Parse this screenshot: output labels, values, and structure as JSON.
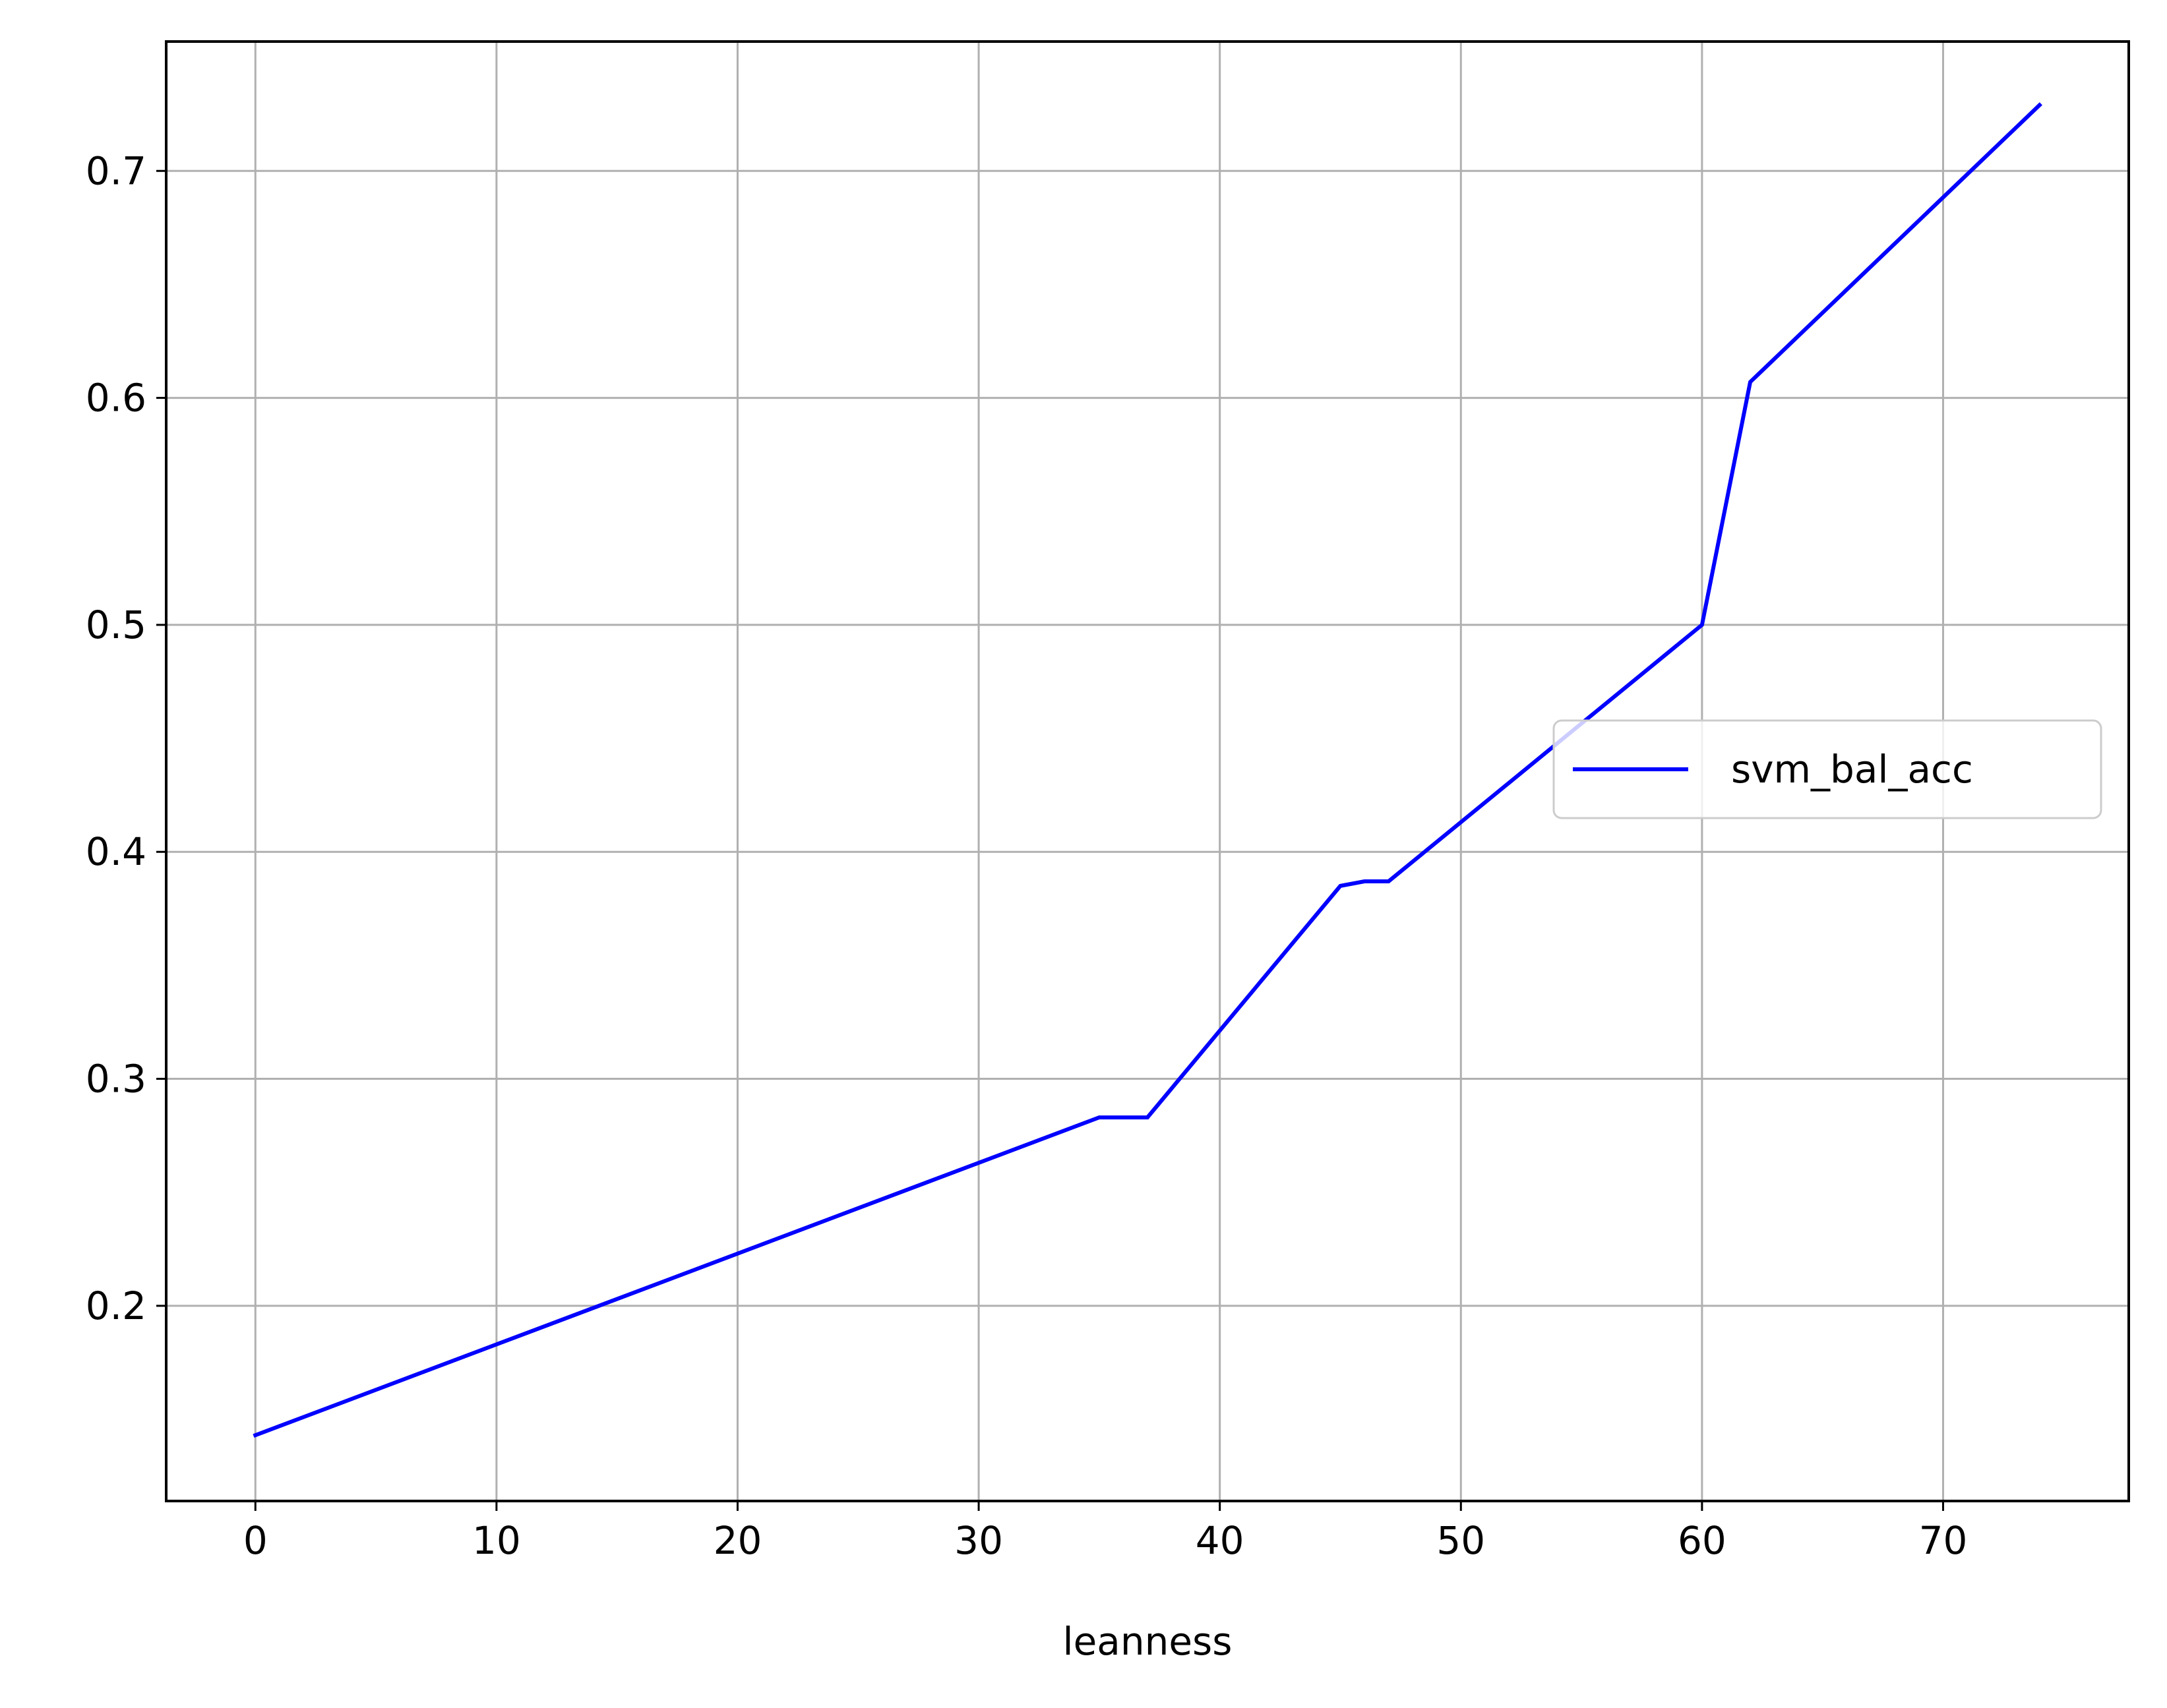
{
  "chart_data": {
    "type": "line",
    "title": "",
    "xlabel": "leanness",
    "ylabel": "",
    "xlim": [
      -3.7,
      77.7
    ],
    "ylim": [
      0.114,
      0.757
    ],
    "xticks": [
      0,
      10,
      20,
      30,
      40,
      50,
      60,
      70
    ],
    "xtick_labels": [
      "0",
      "10",
      "20",
      "30",
      "40",
      "50",
      "60",
      "70"
    ],
    "yticks": [
      0.2,
      0.3,
      0.4,
      0.5,
      0.6,
      0.7
    ],
    "ytick_labels": [
      "0.2",
      "0.3",
      "0.4",
      "0.5",
      "0.6",
      "0.7"
    ],
    "grid": true,
    "legend_position": "center-right",
    "series": [
      {
        "name": "svm_bal_acc",
        "color": "#0000ff",
        "x": [
          0,
          35,
          37,
          45,
          46,
          47,
          60,
          62,
          74
        ],
        "y": [
          0.143,
          0.283,
          0.283,
          0.385,
          0.387,
          0.387,
          0.5,
          0.607,
          0.729
        ]
      }
    ]
  }
}
